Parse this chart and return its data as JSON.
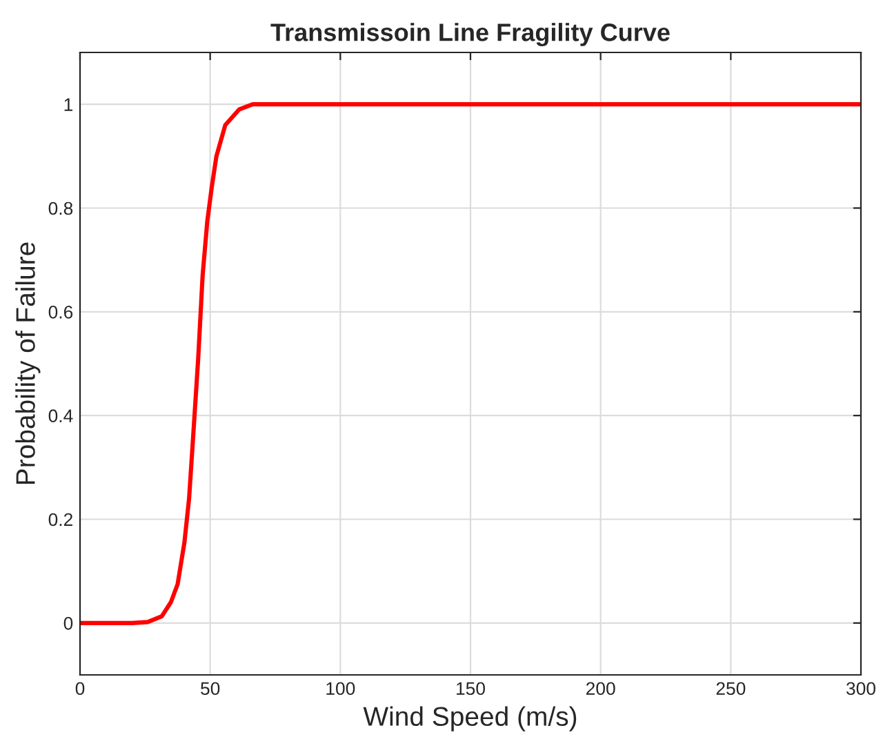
{
  "chart_data": {
    "type": "line",
    "title": "Transmissoin Line Fragility Curve",
    "xlabel": "Wind Speed (m/s)",
    "ylabel": "Probability of Failure",
    "series": [
      {
        "color": "#ff0000",
        "x": [
          0,
          20,
          26,
          31.4,
          34.9,
          37.5,
          40.1,
          41.9,
          43.6,
          45.4,
          47.1,
          48.9,
          50.6,
          52.4,
          55.8,
          61.1,
          66.3,
          80,
          300
        ],
        "values": [
          0,
          0,
          0.002,
          0.013,
          0.04,
          0.075,
          0.155,
          0.24,
          0.37,
          0.51,
          0.67,
          0.775,
          0.84,
          0.9,
          0.96,
          0.99,
          1,
          1,
          1
        ]
      }
    ],
    "xlim": [
      0,
      300
    ],
    "xticks": [
      0,
      50,
      100,
      150,
      200,
      250,
      300
    ],
    "ylim": [
      -0.1,
      1.1
    ],
    "yticks": [
      0,
      0.2,
      0.4,
      0.6,
      0.8,
      1
    ],
    "grid": true,
    "line_style": "solid",
    "marker": "none"
  }
}
